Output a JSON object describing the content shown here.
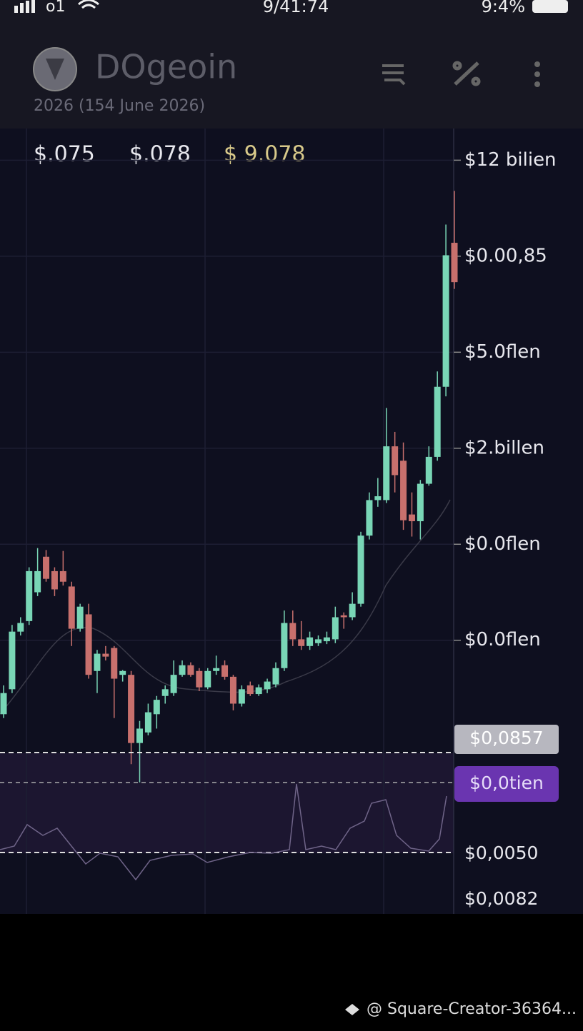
{
  "status_bar": {
    "carrier": "o1",
    "time": "9/41:74",
    "battery": "9:4%"
  },
  "header": {
    "title": "DOgeoin",
    "subtitle": "2026 (154 June 2026)"
  },
  "price_row": [
    "$.075",
    "$.078",
    "$ 9.078"
  ],
  "price_badges": [
    "$0,0857",
    "$0,0tien"
  ],
  "indicator_labels": [
    "$0,0050",
    "$0,0082"
  ],
  "footer": "@ Square-Creator-36364...",
  "chart_data": {
    "type": "candlestick",
    "up_color": "#79d6b6",
    "down_color": "#c8706d",
    "ylim": [
      -1.85,
      6.33
    ],
    "yticks": [
      {
        "value": 6,
        "label": "$12 bilien"
      },
      {
        "value": 5,
        "label": "$0.00,85"
      },
      {
        "value": 4,
        "label": "$5.0flen"
      },
      {
        "value": 3,
        "label": "$2.billen"
      },
      {
        "value": 2,
        "label": "$0.0flen"
      },
      {
        "value": 1,
        "label": "$0.0flen"
      }
    ],
    "grid": true,
    "open": [
      0.23,
      0.49,
      1.09,
      1.2,
      1.5,
      1.87,
      1.72,
      1.72,
      1.56,
      1.12,
      1.27,
      0.68,
      0.86,
      0.92,
      0.64,
      0.64,
      -0.07,
      0.04,
      0.23,
      0.42,
      0.45,
      0.64,
      0.74,
      0.68,
      0.51,
      0.68,
      0.74,
      0.62,
      0.34,
      0.53,
      0.44,
      0.49,
      0.54,
      0.71,
      1.18,
      1.01,
      0.94,
      0.97,
      0.99,
      1.01,
      1.26,
      1.24,
      1.38,
      2.09,
      2.46,
      2.46,
      3.02,
      2.87,
      2.31,
      2.24,
      2.63,
      2.91,
      3.64,
      5.14
    ],
    "close": [
      0.45,
      1.09,
      1.18,
      1.72,
      1.72,
      1.64,
      1.53,
      1.61,
      1.12,
      1.35,
      0.64,
      0.86,
      0.83,
      0.6,
      0.68,
      -0.07,
      0.08,
      0.25,
      0.38,
      0.49,
      0.64,
      0.74,
      0.64,
      0.51,
      0.68,
      0.71,
      0.62,
      0.34,
      0.49,
      0.44,
      0.51,
      0.57,
      0.71,
      1.18,
      1.01,
      0.94,
      1.03,
      1.01,
      1.03,
      1.24,
      1.24,
      1.38,
      2.09,
      2.46,
      2.5,
      3.02,
      2.72,
      2.25,
      2.24,
      2.63,
      2.91,
      3.64,
      5.01,
      4.73
    ],
    "high": [
      0.53,
      1.16,
      1.24,
      1.76,
      1.96,
      1.94,
      1.76,
      1.93,
      1.61,
      1.38,
      1.38,
      0.9,
      0.94,
      0.94,
      0.69,
      0.68,
      0.16,
      0.34,
      0.42,
      0.53,
      0.79,
      0.79,
      0.77,
      0.71,
      0.71,
      0.84,
      0.79,
      0.64,
      0.53,
      0.57,
      0.54,
      0.6,
      0.77,
      1.31,
      1.31,
      1.2,
      1.09,
      1.05,
      1.09,
      1.35,
      1.29,
      1.5,
      2.13,
      2.54,
      2.69,
      3.42,
      3.17,
      3.06,
      2.54,
      2.67,
      3.02,
      3.8,
      5.33,
      5.68
    ],
    "low": [
      0.19,
      0.45,
      1.05,
      1.16,
      1.46,
      1.61,
      1.46,
      1.57,
      0.94,
      1.09,
      0.6,
      0.45,
      0.79,
      0.19,
      0.57,
      -0.29,
      -0.48,
      0.01,
      0.08,
      0.34,
      0.42,
      0.62,
      0.62,
      0.47,
      0.49,
      0.64,
      0.59,
      0.27,
      0.31,
      0.42,
      0.42,
      0.45,
      0.51,
      0.68,
      0.94,
      0.9,
      0.9,
      0.94,
      0.96,
      0.97,
      1.12,
      1.21,
      1.35,
      2.05,
      2.39,
      2.43,
      2.54,
      2.15,
      2.08,
      2.05,
      2.61,
      2.87,
      3.54,
      4.66
    ]
  }
}
